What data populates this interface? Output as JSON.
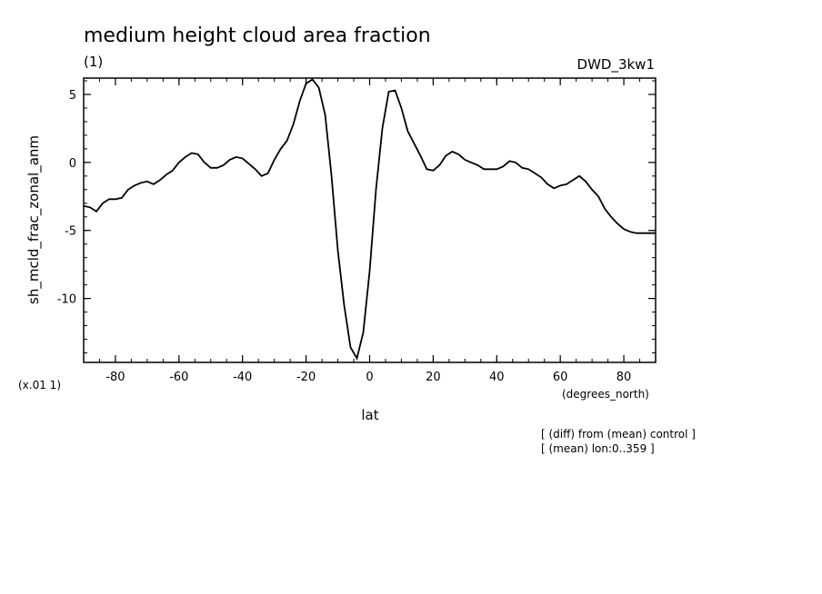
{
  "chart_data": {
    "type": "line",
    "title": "medium height cloud area fraction",
    "subtitle": "(1)",
    "model_label": "DWD_3kw1",
    "xlabel": "lat",
    "xunits": "(degrees_north)",
    "ylabel": "sh_mcld_frac_zonal_anm",
    "yscale_note": "(x.01 1)",
    "notes": [
      "[ (diff) from (mean) control ]",
      "[ (mean) lon:0..359 ]"
    ],
    "xlim": [
      -90,
      90
    ],
    "ylim": [
      -14.7,
      6.2
    ],
    "xticks": [
      -80,
      -60,
      -40,
      -20,
      0,
      20,
      40,
      60,
      80
    ],
    "xtick_labels": [
      "-80",
      "-60",
      "-40",
      "-20",
      "0",
      "20",
      "40",
      "60",
      "80"
    ],
    "yticks": [
      5,
      0,
      -5,
      -10
    ],
    "ytick_labels": [
      "5",
      "0",
      "-5",
      "-10"
    ],
    "grid": false,
    "series": [
      {
        "x": [
          -90,
          -88,
          -86,
          -84,
          -82,
          -80,
          -78,
          -76,
          -74,
          -72,
          -70,
          -68,
          -66,
          -64,
          -62,
          -60,
          -58,
          -56,
          -54,
          -52,
          -50,
          -48,
          -46,
          -44,
          -42,
          -40,
          -38,
          -36,
          -34,
          -32,
          -30,
          -28,
          -26,
          -24,
          -22,
          -20,
          -18,
          -16,
          -14,
          -12,
          -10,
          -8,
          -6,
          -4,
          -2,
          0,
          2,
          4,
          6,
          8,
          10,
          12,
          14,
          16,
          18,
          20,
          22,
          24,
          26,
          28,
          30,
          32,
          34,
          36,
          38,
          40,
          42,
          44,
          46,
          48,
          50,
          52,
          54,
          56,
          58,
          60,
          62,
          64,
          66,
          68,
          70,
          72,
          74,
          76,
          78,
          80,
          82,
          84,
          86,
          88,
          90
        ],
        "y": [
          -3.2,
          -3.3,
          -3.6,
          -3.0,
          -2.7,
          -2.7,
          -2.6,
          -2.0,
          -1.7,
          -1.5,
          -1.4,
          -1.6,
          -1.3,
          -0.9,
          -0.6,
          0.0,
          0.4,
          0.7,
          0.6,
          0.0,
          -0.4,
          -0.4,
          -0.2,
          0.2,
          0.4,
          0.3,
          -0.1,
          -0.5,
          -1.0,
          -0.8,
          0.2,
          1.0,
          1.6,
          2.8,
          4.5,
          5.8,
          6.1,
          5.5,
          3.5,
          -1.0,
          -6.5,
          -10.5,
          -13.6,
          -14.4,
          -12.5,
          -8.0,
          -2.0,
          2.5,
          5.2,
          5.3,
          4.0,
          2.3,
          1.4,
          0.5,
          -0.5,
          -0.6,
          -0.2,
          0.5,
          0.8,
          0.6,
          0.2,
          0.0,
          -0.2,
          -0.5,
          -0.5,
          -0.5,
          -0.3,
          0.1,
          0.0,
          -0.4,
          -0.5,
          -0.8,
          -1.1,
          -1.6,
          -1.9,
          -1.7,
          -1.6,
          -1.3,
          -1.0,
          -1.4,
          -2.0,
          -2.5,
          -3.4,
          -4.0,
          -4.5,
          -4.9,
          -5.1,
          -5.2,
          -5.2,
          -5.2,
          -5.2
        ]
      }
    ]
  }
}
